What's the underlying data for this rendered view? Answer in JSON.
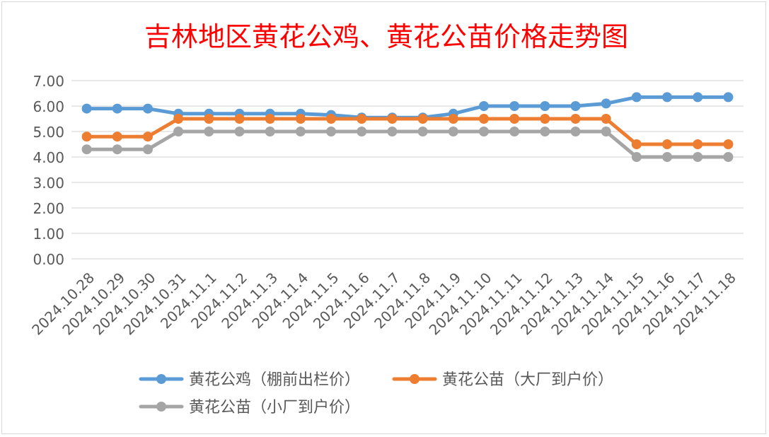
{
  "chart_data": {
    "type": "line",
    "title": "吉林地区黄花公鸡、黄花公苗价格走势图",
    "xlabel": "",
    "ylabel": "",
    "ylim": [
      0,
      7
    ],
    "yticks": [
      "0.00",
      "1.00",
      "2.00",
      "3.00",
      "4.00",
      "5.00",
      "6.00",
      "7.00"
    ],
    "grid": true,
    "legend_position": "bottom",
    "categories": [
      "2024.10.28",
      "2024.10.29",
      "2024.10.30",
      "2024.10.31",
      "2024.11.1",
      "2024.11.2",
      "2024.11.3",
      "2024.11.4",
      "2024.11.5",
      "2024.11.6",
      "2024.11.7",
      "2024.11.8",
      "2024.11.9",
      "2024.11.10",
      "2024.11.11",
      "2024.11.12",
      "2024.11.13",
      "2024.11.14",
      "2024.11.15",
      "2024.11.16",
      "2024.11.17",
      "2024.11.18"
    ],
    "series": [
      {
        "name": "黄花公鸡（棚前出栏价）",
        "color": "#5b9bd5",
        "values": [
          5.9,
          5.9,
          5.9,
          5.7,
          5.7,
          5.7,
          5.7,
          5.7,
          5.65,
          5.55,
          5.55,
          5.55,
          5.7,
          6.0,
          6.0,
          6.0,
          6.0,
          6.1,
          6.35,
          6.35,
          6.35,
          6.35
        ]
      },
      {
        "name": "黄花公苗（大厂到户价）",
        "color": "#ed7d31",
        "values": [
          4.8,
          4.8,
          4.8,
          5.5,
          5.5,
          5.5,
          5.5,
          5.5,
          5.5,
          5.5,
          5.5,
          5.5,
          5.5,
          5.5,
          5.5,
          5.5,
          5.5,
          5.5,
          4.5,
          4.5,
          4.5,
          4.5
        ]
      },
      {
        "name": "黄花公苗（小厂到户价）",
        "color": "#a5a5a5",
        "values": [
          4.3,
          4.3,
          4.3,
          5.0,
          5.0,
          5.0,
          5.0,
          5.0,
          5.0,
          5.0,
          5.0,
          5.0,
          5.0,
          5.0,
          5.0,
          5.0,
          5.0,
          5.0,
          4.0,
          4.0,
          4.0,
          4.0
        ]
      }
    ]
  },
  "colors": {
    "title": "#ff0000",
    "grid": "#d9d9d9",
    "tick_text": "#595959"
  }
}
